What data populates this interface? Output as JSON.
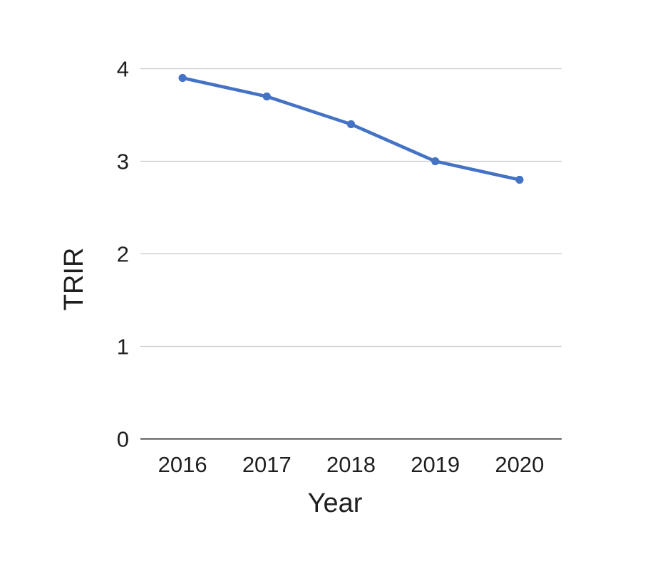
{
  "chart_data": {
    "type": "line",
    "title": "",
    "xlabel": "Year",
    "ylabel": "TRIR",
    "categories": [
      "2016",
      "2017",
      "2018",
      "2019",
      "2020"
    ],
    "series": [
      {
        "name": "TRIR",
        "values": [
          3.9,
          3.7,
          3.4,
          3.0,
          2.8
        ]
      }
    ],
    "ylim": [
      0,
      4
    ],
    "yticks": [
      0,
      1,
      2,
      3,
      4
    ],
    "grid": "horizontal",
    "legend": "none",
    "marker": "circle",
    "colors": {
      "line": "#4472C4",
      "marker": "#4472C4",
      "gridline": "#C9C9C9",
      "axis_line": "#595959",
      "text": "#1F1F1F",
      "background": "#FFFFFF"
    }
  }
}
